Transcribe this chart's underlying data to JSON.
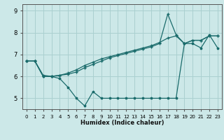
{
  "xlabel": "Humidex (Indice chaleur)",
  "ylabel": "",
  "bg_color": "#cce8e8",
  "grid_color": "#aad0d0",
  "line_color": "#1a6b6b",
  "xlim": [
    -0.5,
    23.5
  ],
  "ylim": [
    4.5,
    9.3
  ],
  "yticks": [
    5,
    6,
    7,
    8,
    9
  ],
  "xticks": [
    0,
    1,
    2,
    3,
    4,
    5,
    6,
    7,
    8,
    9,
    10,
    11,
    12,
    13,
    14,
    15,
    16,
    17,
    18,
    19,
    20,
    21,
    22,
    23
  ],
  "line1_x": [
    0,
    1,
    2,
    3,
    4,
    5,
    6,
    7,
    8,
    9,
    10,
    11,
    12,
    13,
    14,
    15,
    16,
    17,
    18,
    19,
    20,
    21,
    22,
    23
  ],
  "line1_y": [
    6.7,
    6.7,
    6.0,
    6.0,
    5.9,
    5.5,
    5.0,
    4.65,
    5.3,
    5.0,
    5.0,
    5.0,
    5.0,
    5.0,
    5.0,
    5.0,
    5.0,
    5.0,
    5.0,
    7.5,
    7.5,
    7.3,
    7.9,
    7.3
  ],
  "line2_x": [
    0,
    1,
    2,
    3,
    4,
    5,
    6,
    7,
    8,
    9,
    10,
    11,
    12,
    13,
    14,
    15,
    16,
    17,
    18,
    19,
    20,
    21,
    22,
    23
  ],
  "line2_y": [
    6.7,
    6.7,
    6.0,
    6.0,
    6.05,
    6.1,
    6.2,
    6.4,
    6.55,
    6.7,
    6.85,
    6.95,
    7.05,
    7.15,
    7.25,
    7.35,
    7.5,
    8.85,
    7.9,
    7.5,
    7.65,
    7.65,
    7.85,
    7.85
  ],
  "line3_x": [
    0,
    1,
    2,
    3,
    4,
    5,
    6,
    7,
    8,
    9,
    10,
    11,
    12,
    13,
    14,
    15,
    16,
    17,
    18,
    19,
    20,
    21,
    22,
    23
  ],
  "line3_y": [
    6.7,
    6.7,
    6.05,
    6.0,
    6.05,
    6.15,
    6.3,
    6.5,
    6.65,
    6.8,
    6.9,
    7.0,
    7.1,
    7.2,
    7.3,
    7.4,
    7.55,
    7.75,
    7.85,
    7.5,
    7.65,
    7.65,
    7.85,
    7.85
  ]
}
